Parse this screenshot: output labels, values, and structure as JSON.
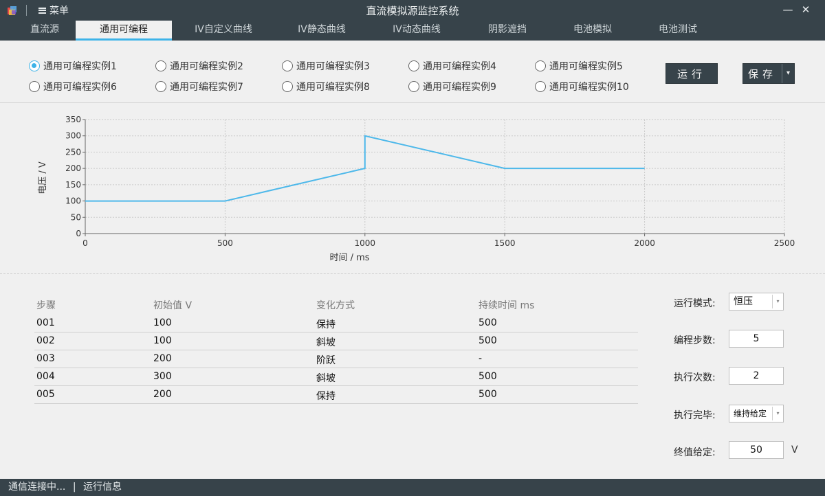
{
  "window": {
    "title": "直流模拟源监控系统",
    "menu_label": "菜单",
    "minimize_glyph": "—",
    "close_glyph": "✕"
  },
  "tabs": [
    {
      "label": "直流源",
      "active": false
    },
    {
      "label": "通用可编程",
      "active": true
    },
    {
      "label": "IV自定义曲线",
      "active": false
    },
    {
      "label": "IV静态曲线",
      "active": false
    },
    {
      "label": "IV动态曲线",
      "active": false
    },
    {
      "label": "阴影遮挡",
      "active": false
    },
    {
      "label": "电池模拟",
      "active": false
    },
    {
      "label": "电池测试",
      "active": false
    }
  ],
  "instances": [
    {
      "label": "通用可编程实例1",
      "checked": true
    },
    {
      "label": "通用可编程实例2",
      "checked": false
    },
    {
      "label": "通用可编程实例3",
      "checked": false
    },
    {
      "label": "通用可编程实例4",
      "checked": false
    },
    {
      "label": "通用可编程实例5",
      "checked": false
    },
    {
      "label": "通用可编程实例6",
      "checked": false
    },
    {
      "label": "通用可编程实例7",
      "checked": false
    },
    {
      "label": "通用可编程实例8",
      "checked": false
    },
    {
      "label": "通用可编程实例9",
      "checked": false
    },
    {
      "label": "通用可编程实例10",
      "checked": false
    }
  ],
  "buttons": {
    "run_label": "运行",
    "save_label": "保存",
    "save_arrow_glyph": "▾"
  },
  "chart_data": {
    "type": "line",
    "xlabel": "时间 / ms",
    "ylabel": "电压 / V",
    "xlim": [
      0,
      2500
    ],
    "ylim": [
      0,
      350
    ],
    "xticks": [
      0,
      500,
      1000,
      1500,
      2000,
      2500
    ],
    "yticks": [
      0,
      50,
      100,
      150,
      200,
      250,
      300,
      350
    ],
    "grid": true,
    "line_color": "#4db8ea",
    "series": [
      {
        "x": [
          0,
          500,
          1000,
          1000,
          1500,
          2000
        ],
        "y": [
          100,
          100,
          200,
          300,
          200,
          200
        ]
      }
    ]
  },
  "table": {
    "headers": [
      "步骤",
      "初始值  V",
      "变化方式",
      "持续时间  ms"
    ],
    "rows": [
      [
        "001",
        "100",
        "保持",
        "500"
      ],
      [
        "002",
        "100",
        "斜坡",
        "500"
      ],
      [
        "003",
        "200",
        "阶跃",
        "-"
      ],
      [
        "004",
        "300",
        "斜坡",
        "500"
      ],
      [
        "005",
        "200",
        "保持",
        "500"
      ]
    ]
  },
  "settings": {
    "run_mode_label": "运行模式:",
    "run_mode_value": "恒压",
    "program_steps_label": "编程步数:",
    "program_steps_value": "5",
    "exec_count_label": "执行次数:",
    "exec_count_value": "2",
    "on_complete_label": "执行完毕:",
    "on_complete_value": "维持给定",
    "final_setpoint_label": "终值给定:",
    "final_setpoint_value": "50",
    "final_setpoint_unit": "V",
    "dropdown_glyph": "▾"
  },
  "status": {
    "connection": "通信连接中...",
    "separator": "|",
    "info": "运行信息"
  },
  "colors": {
    "chrome": "#37434a",
    "accent": "#3db3e8",
    "background": "#f0f0f0"
  }
}
